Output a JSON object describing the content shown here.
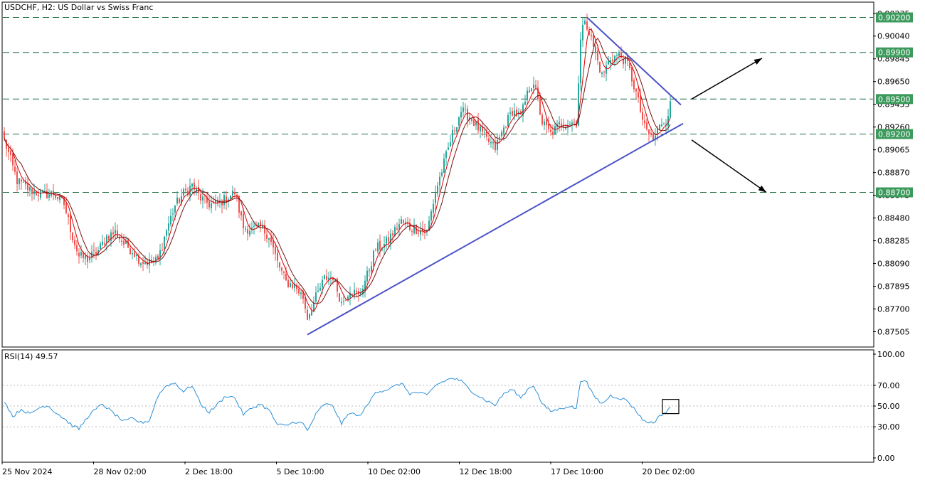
{
  "header": {
    "title": "USDCHF, H2:  US Dollar vs Swiss Franc"
  },
  "rsi_header": {
    "label": "RSI(14) 49.57"
  },
  "colors": {
    "bull": "#26a69a",
    "bear": "#ef5350",
    "ma_fast": "#d90000",
    "ma_slow": "#7a1010",
    "trendline": "#4b52c8",
    "level_line": "#1e6b42",
    "level_tag": "#3c9a5c",
    "rsi_line": "#2b8fd8",
    "arrow": "#000000"
  },
  "chart_data": [
    {
      "type": "candlestick",
      "title": "USDCHF, H2:  US Dollar vs Swiss Franc",
      "ylim": [
        0.8738,
        0.90325
      ],
      "y_ticks": [
        "0.90235",
        "0.90040",
        "0.89845",
        "0.89650",
        "0.89455",
        "0.89260",
        "0.89065",
        "0.88870",
        "0.88675",
        "0.88480",
        "0.88285",
        "0.88090",
        "0.87895",
        "0.87700",
        "0.87505"
      ],
      "x_labels": [
        "25 Nov 2024",
        "28 Nov 02:00",
        "2 Dec 18:00",
        "5 Dec 10:00",
        "10 Dec 02:00",
        "12 Dec 18:00",
        "17 Dec 10:00",
        "20 Dec 02:00"
      ],
      "horizontal_levels": [
        {
          "value": 0.902,
          "label": "0.90200"
        },
        {
          "value": 0.899,
          "label": "0.89900"
        },
        {
          "value": 0.895,
          "label": "0.89500"
        },
        {
          "value": 0.892,
          "label": "0.89200"
        },
        {
          "value": 0.887,
          "label": "0.88700"
        }
      ],
      "close_path": [
        {
          "bar": 0,
          "price": 0.8915
        },
        {
          "bar": 6,
          "price": 0.888
        },
        {
          "bar": 12,
          "price": 0.8872
        },
        {
          "bar": 18,
          "price": 0.8868
        },
        {
          "bar": 23,
          "price": 0.8869
        },
        {
          "bar": 28,
          "price": 0.886
        },
        {
          "bar": 32,
          "price": 0.8832
        },
        {
          "bar": 35,
          "price": 0.8815
        },
        {
          "bar": 39,
          "price": 0.8813
        },
        {
          "bar": 44,
          "price": 0.882
        },
        {
          "bar": 48,
          "price": 0.8832
        },
        {
          "bar": 52,
          "price": 0.8836
        },
        {
          "bar": 56,
          "price": 0.8826
        },
        {
          "bar": 60,
          "price": 0.882
        },
        {
          "bar": 64,
          "price": 0.8811
        },
        {
          "bar": 68,
          "price": 0.881
        },
        {
          "bar": 72,
          "price": 0.8812
        },
        {
          "bar": 76,
          "price": 0.8838
        },
        {
          "bar": 80,
          "price": 0.8859
        },
        {
          "bar": 84,
          "price": 0.8869
        },
        {
          "bar": 88,
          "price": 0.8876
        },
        {
          "bar": 92,
          "price": 0.8865
        },
        {
          "bar": 96,
          "price": 0.886
        },
        {
          "bar": 100,
          "price": 0.886
        },
        {
          "bar": 104,
          "price": 0.8865
        },
        {
          "bar": 108,
          "price": 0.887
        },
        {
          "bar": 112,
          "price": 0.884
        },
        {
          "bar": 116,
          "price": 0.8838
        },
        {
          "bar": 120,
          "price": 0.884
        },
        {
          "bar": 124,
          "price": 0.8833
        },
        {
          "bar": 128,
          "price": 0.881
        },
        {
          "bar": 132,
          "price": 0.8793
        },
        {
          "bar": 136,
          "price": 0.879
        },
        {
          "bar": 140,
          "price": 0.878
        },
        {
          "bar": 142,
          "price": 0.8763
        },
        {
          "bar": 146,
          "price": 0.878
        },
        {
          "bar": 150,
          "price": 0.8796
        },
        {
          "bar": 154,
          "price": 0.8798
        },
        {
          "bar": 158,
          "price": 0.8775
        },
        {
          "bar": 162,
          "price": 0.8787
        },
        {
          "bar": 166,
          "price": 0.8781
        },
        {
          "bar": 170,
          "price": 0.8799
        },
        {
          "bar": 174,
          "price": 0.8822
        },
        {
          "bar": 178,
          "price": 0.8825
        },
        {
          "bar": 182,
          "price": 0.8835
        },
        {
          "bar": 186,
          "price": 0.8845
        },
        {
          "bar": 190,
          "price": 0.884
        },
        {
          "bar": 194,
          "price": 0.8838
        },
        {
          "bar": 198,
          "price": 0.8836
        },
        {
          "bar": 202,
          "price": 0.887
        },
        {
          "bar": 206,
          "price": 0.8895
        },
        {
          "bar": 210,
          "price": 0.892
        },
        {
          "bar": 214,
          "price": 0.894
        },
        {
          "bar": 218,
          "price": 0.8935
        },
        {
          "bar": 222,
          "price": 0.8925
        },
        {
          "bar": 226,
          "price": 0.8915
        },
        {
          "bar": 230,
          "price": 0.8908
        },
        {
          "bar": 234,
          "price": 0.8925
        },
        {
          "bar": 238,
          "price": 0.894
        },
        {
          "bar": 242,
          "price": 0.8935
        },
        {
          "bar": 246,
          "price": 0.896
        },
        {
          "bar": 248,
          "price": 0.8965
        },
        {
          "bar": 252,
          "price": 0.893
        },
        {
          "bar": 256,
          "price": 0.892
        },
        {
          "bar": 260,
          "price": 0.8928
        },
        {
          "bar": 264,
          "price": 0.893
        },
        {
          "bar": 268,
          "price": 0.893
        },
        {
          "bar": 270,
          "price": 0.9
        },
        {
          "bar": 272,
          "price": 0.902
        },
        {
          "bar": 276,
          "price": 0.8995
        },
        {
          "bar": 280,
          "price": 0.897
        },
        {
          "bar": 284,
          "price": 0.8985
        },
        {
          "bar": 288,
          "price": 0.8988
        },
        {
          "bar": 292,
          "price": 0.898
        },
        {
          "bar": 296,
          "price": 0.8955
        },
        {
          "bar": 300,
          "price": 0.8925
        },
        {
          "bar": 304,
          "price": 0.8915
        },
        {
          "bar": 308,
          "price": 0.893
        },
        {
          "bar": 310,
          "price": 0.8932
        },
        {
          "bar": 312,
          "price": 0.8945
        }
      ],
      "trendlines": [
        {
          "name": "rising support",
          "from": {
            "bar": 142,
            "price": 0.8748
          },
          "to": {
            "bar": 318,
            "price": 0.8929
          }
        },
        {
          "name": "falling resistance",
          "from": {
            "bar": 273,
            "price": 0.902
          },
          "to": {
            "bar": 317,
            "price": 0.8945
          }
        }
      ],
      "arrows": [
        {
          "direction": "up",
          "from": {
            "bar": 322,
            "price": 0.895
          },
          "to": {
            "bar": 355,
            "price": 0.8985
          }
        },
        {
          "direction": "down",
          "from": {
            "bar": 322,
            "price": 0.8915
          },
          "to": {
            "bar": 357,
            "price": 0.887
          }
        }
      ]
    },
    {
      "type": "line",
      "title": "RSI(14) 49.57",
      "ylim": [
        0,
        100
      ],
      "y_ticks": [
        "100.00",
        "70.00",
        "50.00",
        "30.00",
        "0.00"
      ],
      "levels": [
        70,
        50,
        30
      ],
      "series": [
        {
          "name": "RSI(14)",
          "values_by_bar": [
            {
              "bar": 0,
              "value": 55
            },
            {
              "bar": 4,
              "value": 40
            },
            {
              "bar": 8,
              "value": 47
            },
            {
              "bar": 12,
              "value": 42
            },
            {
              "bar": 16,
              "value": 48
            },
            {
              "bar": 20,
              "value": 51
            },
            {
              "bar": 24,
              "value": 44
            },
            {
              "bar": 28,
              "value": 38
            },
            {
              "bar": 32,
              "value": 31
            },
            {
              "bar": 35,
              "value": 28
            },
            {
              "bar": 40,
              "value": 42
            },
            {
              "bar": 46,
              "value": 52
            },
            {
              "bar": 50,
              "value": 45
            },
            {
              "bar": 56,
              "value": 35
            },
            {
              "bar": 60,
              "value": 38
            },
            {
              "bar": 64,
              "value": 34
            },
            {
              "bar": 68,
              "value": 36
            },
            {
              "bar": 72,
              "value": 60
            },
            {
              "bar": 76,
              "value": 70
            },
            {
              "bar": 80,
              "value": 72
            },
            {
              "bar": 84,
              "value": 64
            },
            {
              "bar": 88,
              "value": 70
            },
            {
              "bar": 92,
              "value": 52
            },
            {
              "bar": 96,
              "value": 44
            },
            {
              "bar": 100,
              "value": 52
            },
            {
              "bar": 104,
              "value": 60
            },
            {
              "bar": 108,
              "value": 58
            },
            {
              "bar": 112,
              "value": 42
            },
            {
              "bar": 116,
              "value": 48
            },
            {
              "bar": 120,
              "value": 52
            },
            {
              "bar": 124,
              "value": 46
            },
            {
              "bar": 128,
              "value": 32
            },
            {
              "bar": 132,
              "value": 31
            },
            {
              "bar": 136,
              "value": 35
            },
            {
              "bar": 140,
              "value": 33
            },
            {
              "bar": 142,
              "value": 26
            },
            {
              "bar": 146,
              "value": 42
            },
            {
              "bar": 150,
              "value": 52
            },
            {
              "bar": 154,
              "value": 50
            },
            {
              "bar": 158,
              "value": 33
            },
            {
              "bar": 162,
              "value": 44
            },
            {
              "bar": 166,
              "value": 40
            },
            {
              "bar": 170,
              "value": 50
            },
            {
              "bar": 174,
              "value": 64
            },
            {
              "bar": 178,
              "value": 65
            },
            {
              "bar": 182,
              "value": 68
            },
            {
              "bar": 186,
              "value": 72
            },
            {
              "bar": 190,
              "value": 62
            },
            {
              "bar": 194,
              "value": 63
            },
            {
              "bar": 198,
              "value": 60
            },
            {
              "bar": 202,
              "value": 70
            },
            {
              "bar": 206,
              "value": 74
            },
            {
              "bar": 210,
              "value": 77
            },
            {
              "bar": 214,
              "value": 74
            },
            {
              "bar": 218,
              "value": 66
            },
            {
              "bar": 222,
              "value": 60
            },
            {
              "bar": 226,
              "value": 55
            },
            {
              "bar": 230,
              "value": 51
            },
            {
              "bar": 234,
              "value": 62
            },
            {
              "bar": 238,
              "value": 66
            },
            {
              "bar": 242,
              "value": 58
            },
            {
              "bar": 246,
              "value": 68
            },
            {
              "bar": 248,
              "value": 70
            },
            {
              "bar": 252,
              "value": 52
            },
            {
              "bar": 256,
              "value": 45
            },
            {
              "bar": 260,
              "value": 47
            },
            {
              "bar": 264,
              "value": 50
            },
            {
              "bar": 268,
              "value": 48
            },
            {
              "bar": 270,
              "value": 74
            },
            {
              "bar": 272,
              "value": 76
            },
            {
              "bar": 276,
              "value": 60
            },
            {
              "bar": 280,
              "value": 52
            },
            {
              "bar": 284,
              "value": 60
            },
            {
              "bar": 288,
              "value": 58
            },
            {
              "bar": 292,
              "value": 55
            },
            {
              "bar": 296,
              "value": 45
            },
            {
              "bar": 300,
              "value": 35
            },
            {
              "bar": 304,
              "value": 34
            },
            {
              "bar": 308,
              "value": 42
            },
            {
              "bar": 310,
              "value": 44
            },
            {
              "bar": 312,
              "value": 49.57
            }
          ]
        }
      ]
    }
  ]
}
